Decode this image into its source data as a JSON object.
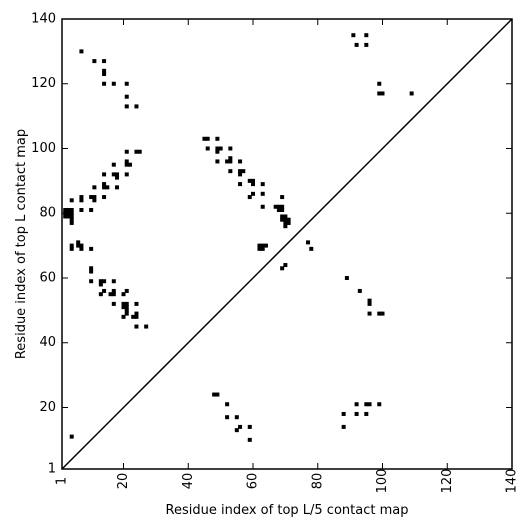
{
  "chart_data": {
    "type": "scatter",
    "title": "",
    "xlabel": "Residue index of top L/5 contact map",
    "ylabel": "Residue index of top L contact map",
    "xlim": [
      1,
      140
    ],
    "ylim": [
      1,
      140
    ],
    "x_ticks": [
      1,
      20,
      40,
      60,
      80,
      100,
      120,
      140
    ],
    "y_ticks": [
      1,
      20,
      40,
      60,
      80,
      100,
      120,
      140
    ],
    "x_tick_labels": [
      "1",
      "20",
      "40",
      "60",
      "80",
      "100",
      "120",
      "140"
    ],
    "y_tick_labels": [
      "1",
      "20",
      "40",
      "60",
      "80",
      "100",
      "120",
      "140"
    ],
    "diagonal": true,
    "marker_color": "#000000",
    "upper_points": [
      [
        7,
        130
      ],
      [
        11,
        127
      ],
      [
        14,
        127
      ],
      [
        14,
        124
      ],
      [
        14,
        123
      ],
      [
        14,
        120
      ],
      [
        17,
        120
      ],
      [
        21,
        120
      ],
      [
        21,
        116
      ],
      [
        21,
        113
      ],
      [
        24,
        113
      ],
      [
        45,
        103
      ],
      [
        46,
        103
      ],
      [
        49,
        103
      ],
      [
        46,
        100
      ],
      [
        49,
        100
      ],
      [
        50,
        100
      ],
      [
        49,
        99
      ],
      [
        53,
        100
      ],
      [
        49,
        96
      ],
      [
        52,
        96
      ],
      [
        53,
        96
      ],
      [
        53,
        97
      ],
      [
        56,
        96
      ],
      [
        21,
        99
      ],
      [
        24,
        99
      ],
      [
        25,
        99
      ],
      [
        21,
        96
      ],
      [
        21,
        95
      ],
      [
        22,
        95
      ],
      [
        14,
        92
      ],
      [
        17,
        92
      ],
      [
        18,
        92
      ],
      [
        18,
        91
      ],
      [
        21,
        92
      ],
      [
        17,
        95
      ],
      [
        11,
        88
      ],
      [
        14,
        88
      ],
      [
        14,
        89
      ],
      [
        15,
        88
      ],
      [
        18,
        88
      ],
      [
        10,
        85
      ],
      [
        11,
        85
      ],
      [
        11,
        84
      ],
      [
        14,
        85
      ],
      [
        7,
        85
      ],
      [
        7,
        84
      ],
      [
        4,
        84
      ],
      [
        7,
        81
      ],
      [
        10,
        81
      ],
      [
        2,
        81
      ],
      [
        3,
        81
      ],
      [
        4,
        81
      ],
      [
        2,
        80
      ],
      [
        3,
        80
      ],
      [
        4,
        80
      ],
      [
        2,
        79
      ],
      [
        3,
        79
      ],
      [
        4,
        79
      ],
      [
        4,
        78
      ],
      [
        4,
        77
      ],
      [
        53,
        93
      ],
      [
        56,
        93
      ],
      [
        57,
        93
      ],
      [
        56,
        92
      ],
      [
        56,
        89
      ],
      [
        60,
        89
      ],
      [
        59,
        90
      ],
      [
        60,
        90
      ],
      [
        63,
        89
      ],
      [
        60,
        86
      ],
      [
        59,
        85
      ],
      [
        63,
        86
      ],
      [
        63,
        82
      ],
      [
        69,
        85
      ],
      [
        67,
        82
      ],
      [
        68,
        82
      ],
      [
        69,
        82
      ],
      [
        68,
        81
      ],
      [
        69,
        81
      ],
      [
        69,
        79
      ],
      [
        70,
        79
      ],
      [
        70,
        78
      ],
      [
        71,
        78
      ],
      [
        69,
        78
      ],
      [
        70,
        77
      ],
      [
        71,
        77
      ],
      [
        70,
        76
      ],
      [
        62,
        70
      ],
      [
        63,
        70
      ],
      [
        64,
        70
      ],
      [
        62,
        69
      ],
      [
        63,
        69
      ],
      [
        77,
        71
      ],
      [
        78,
        69
      ],
      [
        70,
        64
      ],
      [
        69,
        63
      ],
      [
        4,
        70
      ],
      [
        4,
        69
      ],
      [
        6,
        71
      ],
      [
        6,
        70
      ],
      [
        7,
        69
      ],
      [
        7,
        70
      ],
      [
        10,
        69
      ],
      [
        10,
        63
      ],
      [
        10,
        62
      ],
      [
        10,
        59
      ],
      [
        13,
        59
      ],
      [
        14,
        59
      ],
      [
        13,
        58
      ],
      [
        17,
        59
      ],
      [
        14,
        56
      ],
      [
        13,
        55
      ],
      [
        16,
        55
      ],
      [
        17,
        56
      ],
      [
        17,
        55
      ],
      [
        20,
        55
      ],
      [
        21,
        56
      ],
      [
        17,
        52
      ],
      [
        20,
        52
      ],
      [
        21,
        52
      ],
      [
        20,
        51
      ],
      [
        21,
        51
      ],
      [
        21,
        50
      ],
      [
        24,
        52
      ],
      [
        20,
        48
      ],
      [
        21,
        49
      ],
      [
        23,
        48
      ],
      [
        24,
        48
      ],
      [
        24,
        49
      ],
      [
        24,
        45
      ],
      [
        27,
        45
      ],
      [
        91,
        135
      ],
      [
        95,
        135
      ],
      [
        92,
        132
      ],
      [
        95,
        132
      ],
      [
        99,
        120
      ],
      [
        99,
        117
      ],
      [
        100,
        117
      ],
      [
        109,
        117
      ]
    ],
    "lower_points": [
      [
        4,
        11
      ],
      [
        89,
        60
      ],
      [
        93,
        56
      ],
      [
        96,
        53
      ],
      [
        96,
        52
      ],
      [
        96,
        49
      ],
      [
        99,
        49
      ],
      [
        100,
        49
      ],
      [
        48,
        24
      ],
      [
        49,
        24
      ],
      [
        52,
        21
      ],
      [
        52,
        17
      ],
      [
        55,
        17
      ],
      [
        55,
        13
      ],
      [
        56,
        14
      ],
      [
        59,
        14
      ],
      [
        59,
        10
      ],
      [
        88,
        18
      ],
      [
        88,
        14
      ],
      [
        92,
        21
      ],
      [
        92,
        18
      ],
      [
        95,
        21
      ],
      [
        96,
        21
      ],
      [
        95,
        18
      ],
      [
        99,
        21
      ]
    ]
  }
}
